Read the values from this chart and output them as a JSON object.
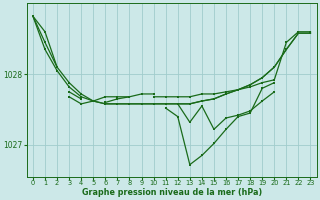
{
  "bg_color": "#cce8e8",
  "grid_color": "#a0cccc",
  "line_color": "#1a6b1a",
  "title": "Graphe pression niveau de la mer (hPa)",
  "xlim": [
    -0.5,
    23.5
  ],
  "ylim": [
    1026.55,
    1029.0
  ],
  "yticks": [
    1027,
    1028
  ],
  "xticks": [
    0,
    1,
    2,
    3,
    4,
    5,
    6,
    7,
    8,
    9,
    10,
    11,
    12,
    13,
    14,
    15,
    16,
    17,
    18,
    19,
    20,
    21,
    22,
    23
  ],
  "series": [
    [
      1028.82,
      1028.6,
      1028.1,
      null,
      null,
      null,
      null,
      null,
      null,
      null,
      1027.68,
      1027.68,
      1027.68,
      1027.68,
      1027.72,
      1027.72,
      1027.75,
      1027.78,
      1027.82,
      1027.88,
      1027.92,
      1028.45,
      1028.6,
      1028.6
    ],
    [
      1028.82,
      1028.45,
      1028.1,
      1027.88,
      1027.72,
      1027.62,
      1027.58,
      1027.58,
      1027.58,
      1027.58,
      1027.58,
      1027.58,
      1027.58,
      1027.58,
      1027.62,
      1027.65,
      1027.72,
      1027.78,
      1027.85,
      1027.95,
      1028.1,
      1028.35,
      1028.58,
      1028.58
    ],
    [
      1028.82,
      1028.35,
      1028.05,
      1027.82,
      1027.68,
      1027.62,
      1027.58,
      1027.58,
      1027.58,
      1027.58,
      1027.58,
      1027.58,
      1027.58,
      1027.58,
      1027.62,
      1027.65,
      1027.72,
      1027.78,
      1027.85,
      1027.95,
      1028.1,
      1028.35,
      1028.58,
      1028.58
    ],
    [
      null,
      null,
      null,
      1027.75,
      1027.65,
      null,
      1027.6,
      1027.65,
      1027.68,
      1027.72,
      1027.72,
      null,
      1027.58,
      1027.32,
      1027.55,
      1027.22,
      1027.38,
      1027.42,
      1027.48,
      1027.62,
      1027.75,
      null,
      null,
      null
    ],
    [
      null,
      null,
      null,
      1027.68,
      1027.58,
      1027.62,
      1027.68,
      1027.68,
      1027.68,
      null,
      null,
      1027.52,
      1027.4,
      1026.72,
      1026.85,
      1027.02,
      1027.22,
      1027.4,
      1027.45,
      1027.8,
      1027.88,
      null,
      null,
      null
    ]
  ],
  "markers": [
    [
      true,
      true,
      true,
      false,
      false,
      false,
      false,
      false,
      false,
      false,
      true,
      true,
      true,
      true,
      true,
      true,
      true,
      true,
      true,
      true,
      true,
      true,
      true,
      true
    ],
    [
      true,
      true,
      true,
      true,
      true,
      true,
      true,
      true,
      true,
      true,
      true,
      true,
      true,
      true,
      true,
      true,
      true,
      true,
      true,
      true,
      true,
      true,
      true,
      true
    ],
    [
      true,
      true,
      true,
      true,
      true,
      true,
      true,
      true,
      true,
      true,
      true,
      true,
      true,
      true,
      true,
      true,
      true,
      true,
      true,
      true,
      true,
      true,
      true,
      true
    ],
    [
      false,
      false,
      false,
      true,
      true,
      false,
      true,
      true,
      true,
      true,
      true,
      false,
      true,
      true,
      true,
      true,
      true,
      true,
      true,
      true,
      true,
      false,
      false,
      false
    ],
    [
      false,
      false,
      false,
      true,
      true,
      true,
      true,
      true,
      true,
      false,
      false,
      true,
      true,
      true,
      true,
      true,
      true,
      true,
      true,
      true,
      true,
      false,
      false,
      false
    ]
  ]
}
